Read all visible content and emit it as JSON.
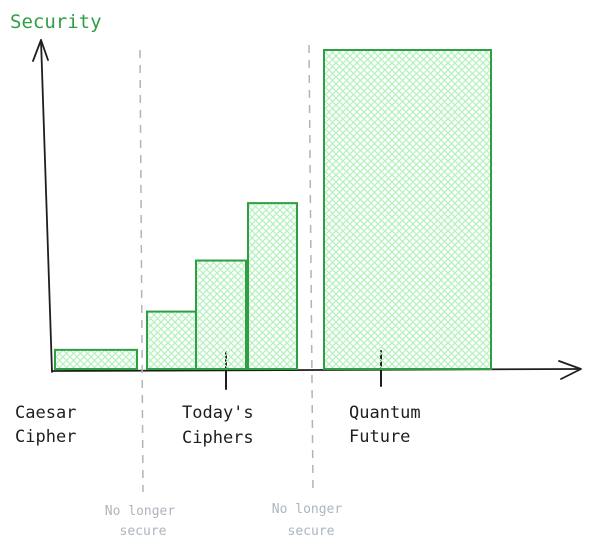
{
  "chart_data": {
    "type": "bar",
    "ylabel": "Security",
    "xlabel": "",
    "ylim": [
      0,
      100
    ],
    "grid": false,
    "legend": "none",
    "values": [
      6,
      18,
      34,
      52,
      100
    ],
    "groups": [
      {
        "label_lines": [
          "Caesar",
          "Cipher"
        ]
      },
      {
        "label_lines": [
          "Today's",
          "Ciphers"
        ]
      },
      {
        "label_lines": [
          "Quantum",
          "Future"
        ]
      }
    ],
    "annotations": [
      {
        "lines": [
          "No longer",
          "secure"
        ]
      },
      {
        "lines": [
          "No longer",
          "secure"
        ]
      }
    ]
  },
  "colors": {
    "bar_stroke": "#2f9e44",
    "bar_hatch": "#b2f2bb",
    "axis": "#1e1e1e",
    "ylabel": "#2f9e44",
    "divider": "#adb5bd",
    "annotation": "#adb5bd",
    "text": "#1e1e1e"
  }
}
